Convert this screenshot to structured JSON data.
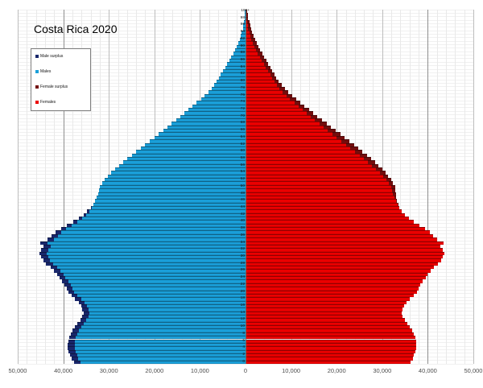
{
  "title": "Costa Rica 2020",
  "colors": {
    "males": "#1A9FD9",
    "male_surplus": "#19276B",
    "females": "#EB0000",
    "female_surplus": "#730D0D",
    "grid_minor": "#e9e9e9",
    "grid_major": "#bdbdbd",
    "grid_dark": "#8f8f8f",
    "center_axis": "#6a6a6a"
  },
  "legend": {
    "items": [
      {
        "label": "Male surplus",
        "color": "#19276B"
      },
      {
        "label": "Males",
        "color": "#1A9FD9"
      },
      {
        "label": "Female surplus",
        "color": "#730D0D"
      },
      {
        "label": "Females",
        "color": "#EB0000"
      }
    ]
  },
  "x_axis": {
    "tick_values": [
      -50000,
      -40000,
      -30000,
      -20000,
      -10000,
      0,
      10000,
      20000,
      30000,
      40000,
      50000
    ],
    "tick_labels": [
      "50,000",
      "40,000",
      "30,000",
      "20,000",
      "10,000",
      "0",
      "10,000",
      "20,000",
      "30,000",
      "40,000",
      "50,000"
    ],
    "minor_grid_step": 2000
  },
  "y_axis": {
    "tick_labels": [
      "100+",
      "98",
      "96",
      "94",
      "92",
      "90",
      "88",
      "86",
      "84",
      "82",
      "80",
      "78",
      "76",
      "74",
      "72",
      "70",
      "68",
      "66",
      "64",
      "62",
      "60",
      "58",
      "56",
      "54",
      "52",
      "50",
      "48",
      "46",
      "44",
      "42",
      "40",
      "38",
      "36",
      "34",
      "32",
      "30",
      "28",
      "26",
      "24",
      "22",
      "20",
      "18",
      "16",
      "14",
      "12",
      "10",
      "8",
      "6",
      "4",
      "2",
      "0"
    ]
  },
  "chart_data": {
    "type": "bar",
    "subtype": "population-pyramid",
    "title": "Costa Rica 2020",
    "age_min": 0,
    "age_max": 100,
    "age_top_label": "100+",
    "xlim": [
      -50000,
      50000
    ],
    "grid": true,
    "legend_position": "upper-left",
    "series": [
      {
        "name": "Males",
        "side": "left",
        "values": [
          37700,
          38200,
          38600,
          38900,
          39100,
          39100,
          38900,
          38700,
          38400,
          38000,
          37500,
          37000,
          36300,
          35800,
          35600,
          35800,
          36100,
          36600,
          37400,
          38200,
          38900,
          39300,
          39700,
          40200,
          40800,
          41300,
          42000,
          42800,
          43800,
          44400,
          44900,
          45300,
          44800,
          44300,
          45000,
          43400,
          42500,
          41700,
          40500,
          39200,
          37800,
          36600,
          35600,
          34800,
          34000,
          33400,
          33000,
          32700,
          32400,
          32100,
          31900,
          31400,
          30900,
          30200,
          29500,
          28700,
          27800,
          26900,
          26000,
          25000,
          24000,
          23000,
          22000,
          21000,
          20000,
          19000,
          18100,
          17100,
          16200,
          15200,
          14300,
          13400,
          12500,
          11600,
          10700,
          9800,
          9000,
          8200,
          7500,
          6900,
          6300,
          5800,
          5400,
          4900,
          4500,
          4000,
          3600,
          3100,
          2700,
          2300,
          1900,
          1600,
          1300,
          1000,
          800,
          600,
          450,
          350,
          250,
          180,
          120
        ]
      },
      {
        "name": "Females",
        "side": "right",
        "values": [
          36200,
          36700,
          37000,
          37300,
          37500,
          37500,
          37400,
          37200,
          36900,
          36500,
          36100,
          35600,
          35000,
          34500,
          34300,
          34500,
          34800,
          35300,
          36100,
          36900,
          37600,
          38000,
          38400,
          38900,
          39500,
          40000,
          40700,
          41400,
          42300,
          42900,
          43300,
          43600,
          43200,
          42800,
          43400,
          42000,
          41200,
          40500,
          39400,
          38200,
          36900,
          35800,
          34900,
          34300,
          33800,
          33500,
          33300,
          33100,
          33000,
          32900,
          32800,
          32400,
          31900,
          31300,
          30700,
          30000,
          29200,
          28400,
          27500,
          26600,
          25700,
          24700,
          23800,
          22800,
          21800,
          20800,
          19800,
          18800,
          17800,
          16800,
          15800,
          14800,
          13900,
          12900,
          12000,
          11100,
          10200,
          9400,
          8600,
          7900,
          7300,
          6800,
          6400,
          5900,
          5500,
          5000,
          4600,
          4100,
          3700,
          3200,
          2800,
          2400,
          2100,
          1800,
          1500,
          1200,
          1000,
          800,
          600,
          450,
          350
        ]
      }
    ]
  }
}
